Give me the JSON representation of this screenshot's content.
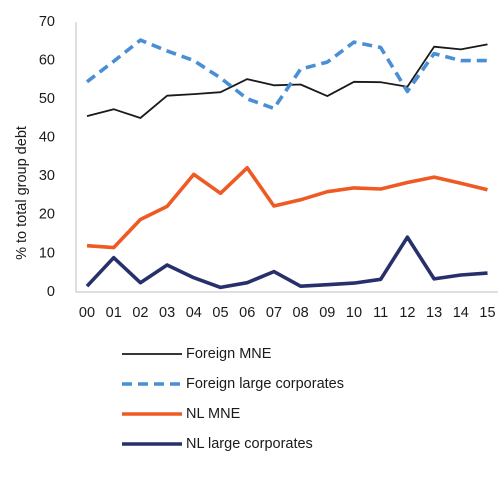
{
  "chart_data": {
    "type": "line",
    "title": "",
    "xlabel": "",
    "ylabel": "% to total group debt",
    "ylim": [
      0,
      70
    ],
    "yticks": [
      0,
      10,
      20,
      30,
      40,
      50,
      60,
      70
    ],
    "grid": false,
    "legend_position": "bottom",
    "categories": [
      "00",
      "01",
      "02",
      "03",
      "04",
      "05",
      "06",
      "07",
      "08",
      "09",
      "10",
      "11",
      "12",
      "13",
      "14",
      "15"
    ],
    "series": [
      {
        "name": "Foreign MNE",
        "color": "#1a1a1a",
        "style": "solid",
        "values": [
          45.6,
          47.4,
          45.1,
          50.9,
          51.3,
          51.8,
          55.2,
          53.6,
          53.8,
          50.8,
          54.5,
          54.4,
          53.2,
          63.6,
          62.9,
          64.2
        ]
      },
      {
        "name": "Foreign large corporates",
        "color": "#4a8fd6",
        "style": "dashed",
        "values": [
          54.5,
          59.8,
          65.3,
          62.5,
          60.0,
          55.5,
          50.1,
          47.6,
          57.8,
          59.6,
          64.8,
          63.4,
          52.0,
          61.8,
          60.0,
          60.0
        ]
      },
      {
        "name": "NL MNE",
        "color": "#ef5a24",
        "style": "solid",
        "values": [
          12.0,
          11.5,
          18.8,
          22.2,
          30.5,
          25.6,
          32.2,
          22.3,
          23.9,
          26.0,
          27.0,
          26.7,
          28.4,
          29.8,
          28.2,
          26.5
        ]
      },
      {
        "name": "NL large corporates",
        "color": "#27306b",
        "style": "solid",
        "values": [
          1.5,
          8.9,
          2.4,
          7.0,
          3.7,
          1.2,
          2.4,
          5.3,
          1.5,
          1.9,
          2.3,
          3.3,
          14.2,
          3.4,
          4.4,
          4.9
        ]
      }
    ]
  }
}
